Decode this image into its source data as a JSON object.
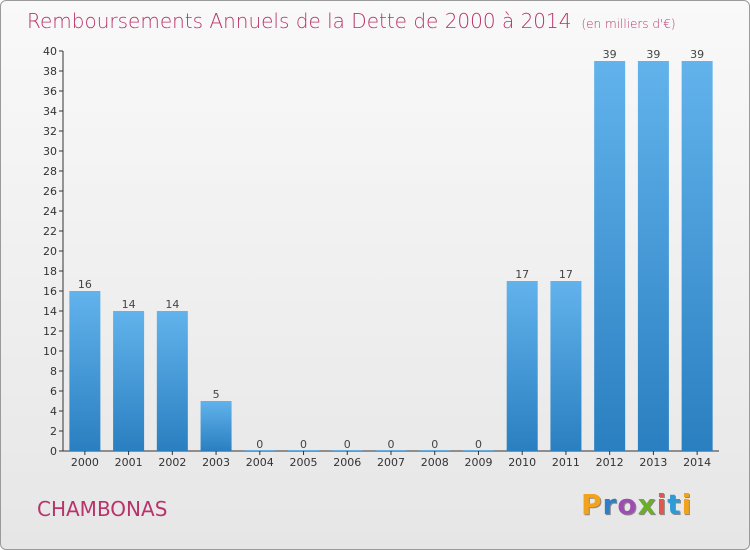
{
  "header": {
    "title": "Remboursements Annuels de la Dette de 2000 à 2014",
    "unit": "(en milliers d'€)"
  },
  "footer": {
    "commune": "CHAMBONAS",
    "logo_text": "Proxiti"
  },
  "colors": {
    "title": "#b8336a",
    "bar_top": "#62b3ec",
    "bar_bottom": "#2a7fc0",
    "axis": "#333333",
    "logo_letters": [
      "#f2a21b",
      "#2e7fc8",
      "#9c4fb0",
      "#6cae2b",
      "#e2574c",
      "#2e9bd6",
      "#f2a21b"
    ]
  },
  "chart_data": {
    "type": "bar",
    "title": "Remboursements Annuels de la Dette de 2000 à 2014",
    "categories": [
      "2000",
      "2001",
      "2002",
      "2003",
      "2004",
      "2005",
      "2006",
      "2007",
      "2008",
      "2009",
      "2010",
      "2011",
      "2012",
      "2013",
      "2014"
    ],
    "values": [
      16,
      14,
      14,
      5,
      0,
      0,
      0,
      0,
      0,
      0,
      17,
      17,
      39,
      39,
      39
    ],
    "ylim": [
      0,
      40
    ],
    "yticks": [
      0,
      2,
      4,
      6,
      8,
      10,
      12,
      14,
      16,
      18,
      20,
      22,
      24,
      26,
      28,
      30,
      32,
      34,
      36,
      38,
      40
    ],
    "grid": false
  }
}
